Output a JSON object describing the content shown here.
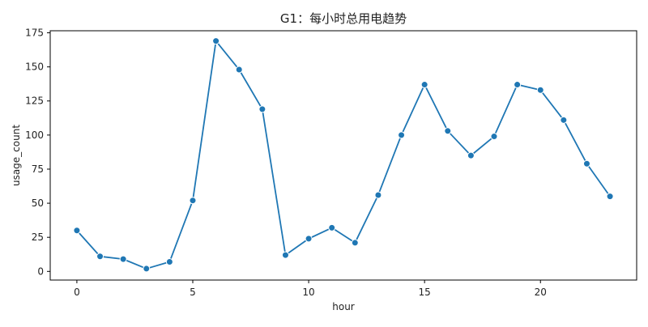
{
  "chart_data": {
    "type": "line",
    "title": "G1：每小时总用电趋势",
    "xlabel": "hour",
    "ylabel": "usage_count",
    "x": [
      0,
      1,
      2,
      3,
      4,
      5,
      6,
      7,
      8,
      9,
      10,
      11,
      12,
      13,
      14,
      15,
      16,
      17,
      18,
      19,
      20,
      21,
      22,
      23
    ],
    "series": [
      {
        "values": [
          30,
          11,
          9,
          2,
          7,
          52,
          169,
          148,
          119,
          12,
          24,
          32,
          21,
          56,
          100,
          137,
          103,
          85,
          99,
          137,
          133,
          111,
          79,
          55
        ]
      }
    ],
    "xlim": [
      -1.15,
      24.15
    ],
    "ylim": [
      -6.35,
      176.5
    ],
    "xticks": [
      0,
      5,
      10,
      15,
      20
    ],
    "yticks": [
      0,
      25,
      50,
      75,
      100,
      125,
      150,
      175
    ],
    "grid": false,
    "color": "#1f77b4",
    "marker": "circle"
  }
}
